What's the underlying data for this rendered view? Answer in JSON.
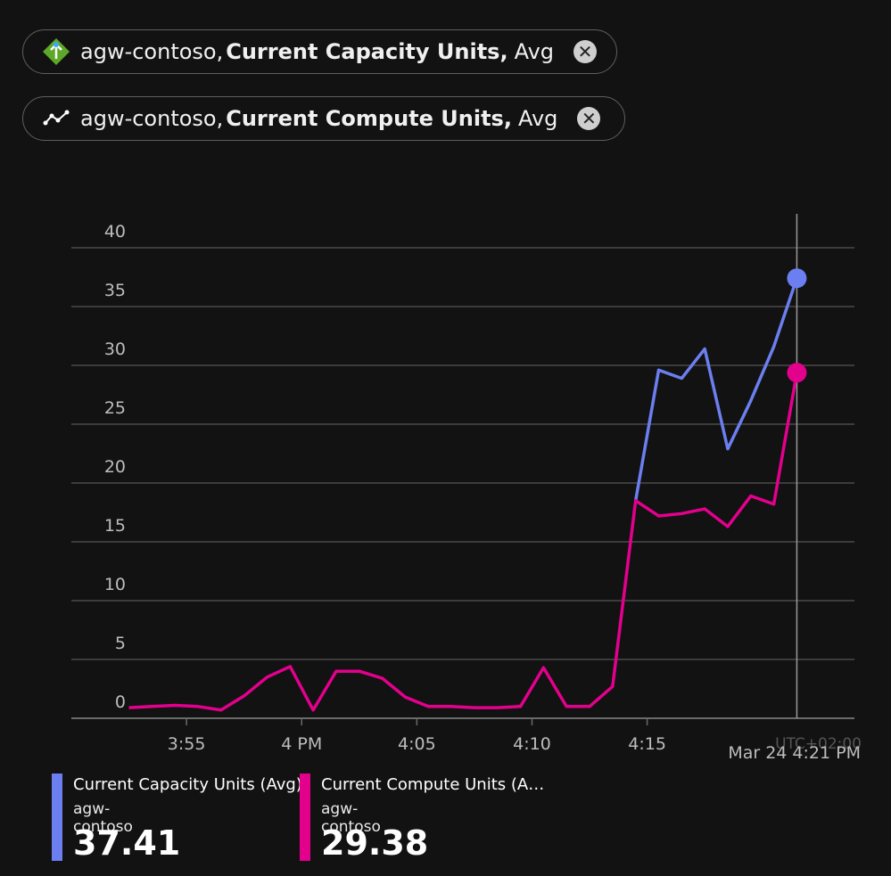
{
  "filters": [
    {
      "resource": "agw-contoso,",
      "metric": "Current Capacity Units,",
      "aggregation": "Avg"
    },
    {
      "resource": "agw-contoso,",
      "metric": "Current Compute Units,",
      "aggregation": "Avg"
    }
  ],
  "chart_data": {
    "type": "line",
    "x": [
      "15:52",
      "15:53",
      "15:54",
      "15:55",
      "15:56",
      "15:57",
      "15:58",
      "15:59",
      "16:00",
      "16:01",
      "16:02",
      "16:03",
      "16:04",
      "16:05",
      "16:06",
      "16:07",
      "16:08",
      "16:09",
      "16:10",
      "16:11",
      "16:12",
      "16:13",
      "16:14",
      "16:15",
      "16:16",
      "16:17",
      "16:18",
      "16:19",
      "16:20",
      "16:21"
    ],
    "series": [
      {
        "name": "Current Capacity Units (Avg)",
        "resource": "agw-contoso",
        "color": "#6b7ff0",
        "values": [
          null,
          null,
          null,
          null,
          null,
          null,
          null,
          null,
          null,
          null,
          null,
          null,
          null,
          null,
          null,
          null,
          null,
          null,
          null,
          null,
          null,
          null,
          18.5,
          29.6,
          28.9,
          31.4,
          22.9,
          27.0,
          31.6,
          37.41
        ]
      },
      {
        "name": "Current Compute Units (A…",
        "resource": "agw-contoso",
        "color": "#e3008c",
        "values": [
          0.9,
          1.0,
          1.1,
          1.0,
          0.7,
          1.9,
          3.5,
          4.4,
          0.7,
          4.0,
          4.0,
          3.4,
          1.8,
          1.0,
          1.0,
          0.9,
          0.9,
          1.0,
          4.3,
          1.0,
          1.0,
          2.7,
          18.5,
          17.2,
          17.4,
          17.8,
          16.3,
          18.9,
          18.2,
          29.38
        ]
      }
    ],
    "xlim": [
      "15:50",
      "16:24"
    ],
    "xticks": [
      {
        "value": "15:55",
        "label": "3:55"
      },
      {
        "value": "16:00",
        "label": "4 PM"
      },
      {
        "value": "16:05",
        "label": "4:05"
      },
      {
        "value": "16:10",
        "label": "4:10"
      },
      {
        "value": "16:15",
        "label": "4:15"
      }
    ],
    "ylim": [
      0,
      40
    ],
    "yticks": [
      0,
      5,
      10,
      15,
      20,
      25,
      30,
      35,
      40
    ],
    "grid": true,
    "crosshair": {
      "x": "16:21",
      "label": "Mar 24 4:21 PM",
      "timezone": "UTC+02:00"
    }
  }
}
